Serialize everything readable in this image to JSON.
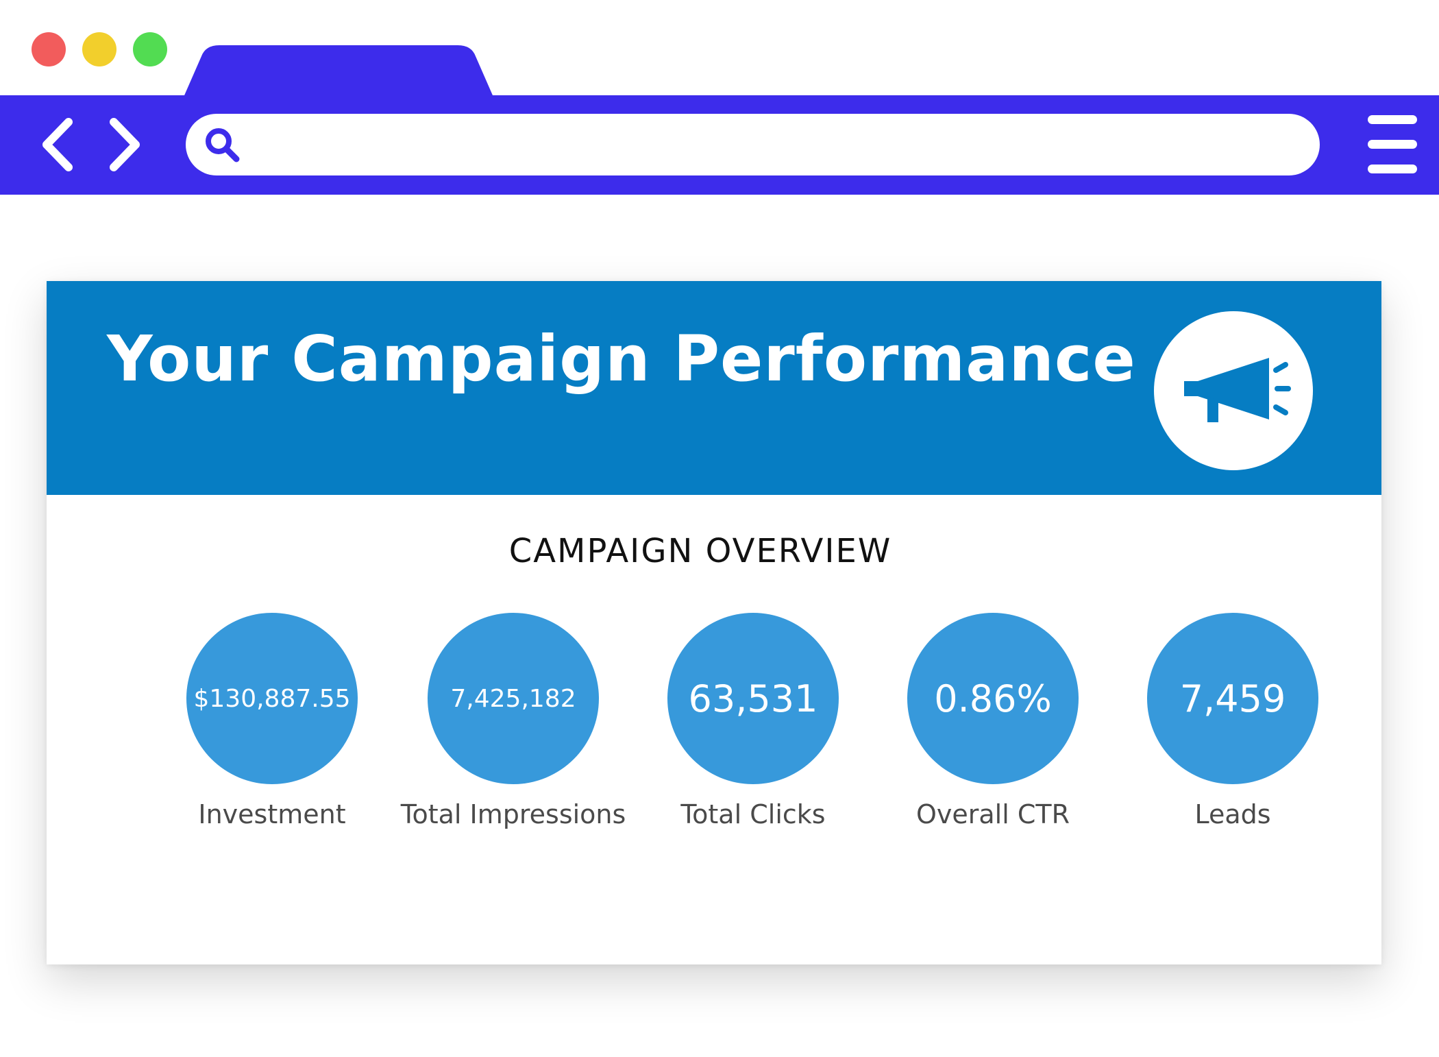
{
  "browser": {
    "window_controls": [
      "close",
      "minimize",
      "maximize"
    ],
    "accent_color": "#3d2ceb",
    "address_bar": {
      "value": "",
      "placeholder": ""
    },
    "icons": {
      "back": "chevron-left-icon",
      "forward": "chevron-right-icon",
      "search": "search-icon",
      "menu": "hamburger-menu-icon"
    }
  },
  "card": {
    "header_color": "#067dc3",
    "title": "Your Campaign Performance",
    "badge_icon": "megaphone-icon",
    "overview_title": "CAMPAIGN OVERVIEW",
    "bubble_color": "#3799db",
    "metrics": [
      {
        "value": "$130,887.55",
        "label": "Investment"
      },
      {
        "value": "7,425,182",
        "label": "Total Impressions"
      },
      {
        "value": "63,531",
        "label": "Total Clicks"
      },
      {
        "value": "0.86%",
        "label": "Overall CTR"
      },
      {
        "value": "7,459",
        "label": "Leads"
      }
    ]
  }
}
